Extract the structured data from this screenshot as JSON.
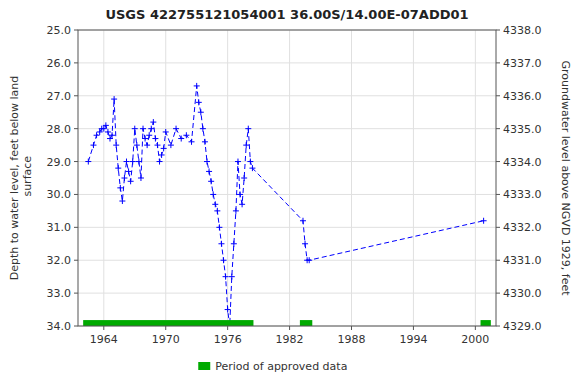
{
  "chart_data": {
    "type": "line",
    "title": "USGS 422755121054001 36.00S/14.00E-07ADD01",
    "ylabel": "Depth to water level, feet below land\n surface",
    "y2label": "Groundwater level above NGVD 1929, feet",
    "xlim": [
      1961.5,
      2002
    ],
    "xticks": [
      1964,
      1970,
      1976,
      1982,
      1988,
      1994,
      2000
    ],
    "ylim": [
      34.0,
      25.0
    ],
    "yticks": [
      {
        "value": 25.0,
        "label": "25.0"
      },
      {
        "value": 26.0,
        "label": "26.0"
      },
      {
        "value": 27.0,
        "label": "27.0"
      },
      {
        "value": 28.0,
        "label": "28.0"
      },
      {
        "value": 29.0,
        "label": "29.0"
      },
      {
        "value": 30.0,
        "label": "30.0"
      },
      {
        "value": 31.0,
        "label": "31.0"
      },
      {
        "value": 32.0,
        "label": "32.0"
      },
      {
        "value": 33.0,
        "label": "33.0"
      },
      {
        "value": 34.0,
        "label": "34.0"
      }
    ],
    "y2lim": [
      4329.0,
      4338.0
    ],
    "y2ticks": [
      {
        "value": 4338.0,
        "label": "4338.0"
      },
      {
        "value": 4337.0,
        "label": "4337.0"
      },
      {
        "value": 4336.0,
        "label": "4336.0"
      },
      {
        "value": 4335.0,
        "label": "4335.0"
      },
      {
        "value": 4334.0,
        "label": "4334.0"
      },
      {
        "value": 4333.0,
        "label": "4333.0"
      },
      {
        "value": 4332.0,
        "label": "4332.0"
      },
      {
        "value": 4331.0,
        "label": "4331.0"
      },
      {
        "value": 4330.0,
        "label": "4330.0"
      },
      {
        "value": 4329.0,
        "label": "4329.0"
      }
    ],
    "grid": true,
    "legend": "bottom",
    "x": [
      1962.5,
      1963.0,
      1963.3,
      1963.6,
      1963.8,
      1964.0,
      1964.2,
      1964.4,
      1964.6,
      1964.8,
      1965.0,
      1965.2,
      1965.4,
      1965.6,
      1965.8,
      1966.0,
      1966.2,
      1966.4,
      1966.6,
      1966.8,
      1967.0,
      1967.2,
      1967.4,
      1967.6,
      1967.8,
      1968.0,
      1968.2,
      1968.4,
      1968.6,
      1968.8,
      1969.0,
      1969.2,
      1969.4,
      1969.6,
      1969.8,
      1970.0,
      1970.5,
      1971.0,
      1971.5,
      1972.0,
      1972.5,
      1973.0,
      1973.2,
      1973.4,
      1973.6,
      1973.8,
      1974.0,
      1974.2,
      1974.4,
      1974.6,
      1974.8,
      1975.0,
      1975.2,
      1975.4,
      1975.6,
      1975.8,
      1976.0,
      1976.2,
      1976.4,
      1976.6,
      1976.8,
      1977.0,
      1977.2,
      1977.4,
      1977.6,
      1977.8,
      1978.0,
      1978.2,
      1978.4,
      1983.3,
      1983.5,
      1983.7,
      1983.9,
      2000.8
    ],
    "series": [
      {
        "type": "line",
        "color": "#0000ff",
        "line_style": "dashed",
        "marker": "plus",
        "values": [
          29.0,
          28.5,
          28.2,
          28.1,
          28.0,
          28.0,
          27.9,
          28.1,
          28.3,
          28.2,
          27.1,
          28.5,
          29.2,
          29.8,
          30.2,
          29.5,
          29.0,
          29.3,
          29.6,
          29.0,
          28.0,
          28.5,
          29.0,
          29.5,
          28.0,
          28.3,
          28.5,
          28.2,
          28.0,
          27.8,
          28.3,
          28.5,
          29.0,
          28.8,
          28.6,
          28.1,
          28.5,
          28.0,
          28.3,
          28.2,
          28.4,
          26.7,
          27.2,
          27.5,
          28.0,
          28.4,
          29.0,
          29.3,
          29.6,
          30.0,
          30.3,
          30.5,
          31.0,
          31.5,
          32.0,
          32.5,
          33.5,
          34.0,
          32.5,
          31.5,
          30.5,
          29.0,
          30.0,
          30.3,
          29.5,
          28.5,
          28.0,
          29.0,
          29.2,
          30.8,
          31.5,
          32.0,
          32.0,
          30.8
        ]
      },
      {
        "type": "range",
        "name": "Period of approved data",
        "color": "#00aa00",
        "segments": [
          [
            1962.0,
            1978.5
          ],
          [
            1983.0,
            1984.2
          ],
          [
            2000.5,
            2001.5
          ]
        ]
      }
    ]
  }
}
